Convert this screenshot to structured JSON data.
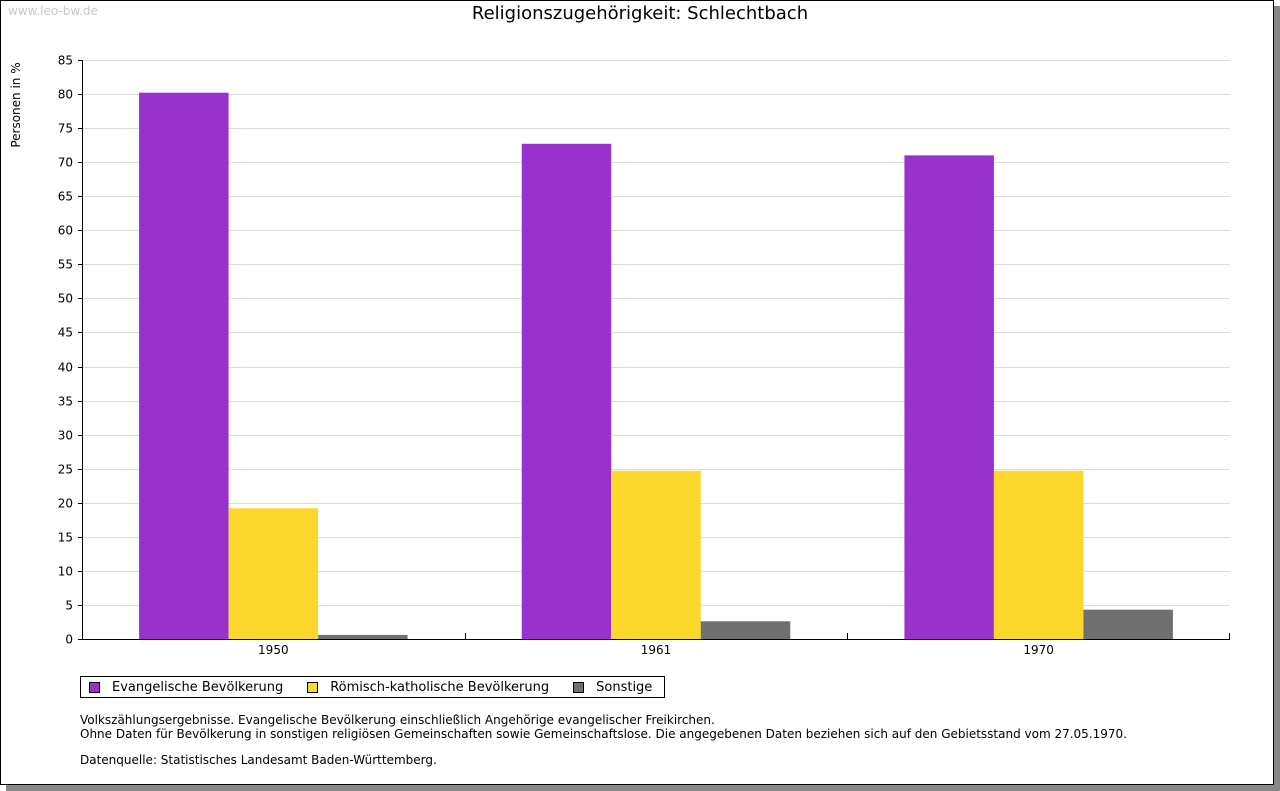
{
  "watermark": "www.leo-bw.de",
  "chart_data": {
    "type": "bar",
    "title": "Religionszugehörigkeit: Schlechtbach",
    "xlabel": "",
    "ylabel": "Personen in %",
    "ylim": [
      0,
      85
    ],
    "ytick_step": 5,
    "grid": true,
    "legend_position": "bottom-left",
    "categories": [
      "1950",
      "1961",
      "1970"
    ],
    "series": [
      {
        "name": "Evangelische Bevölkerung",
        "color": "#9932cc",
        "values": [
          80.2,
          72.7,
          71.0
        ]
      },
      {
        "name": "Römisch-katholische Bevölkerung",
        "color": "#fcd72c",
        "values": [
          19.2,
          24.7,
          24.7
        ]
      },
      {
        "name": "Sonstige",
        "color": "#707070",
        "values": [
          0.6,
          2.6,
          4.3
        ]
      }
    ]
  },
  "notes": {
    "line1": "Volkszählungsergebnisse. Evangelische Bevölkerung einschließlich Angehörige evangelischer Freikirchen.",
    "line2": "Ohne Daten für Bevölkerung in sonstigen religiösen Gemeinschaften sowie Gemeinschaftslose. Die angegebenen Daten beziehen sich auf den Gebietsstand vom 27.05.1970.",
    "source": "Datenquelle: Statistisches Landesamt Baden-Württemberg."
  }
}
